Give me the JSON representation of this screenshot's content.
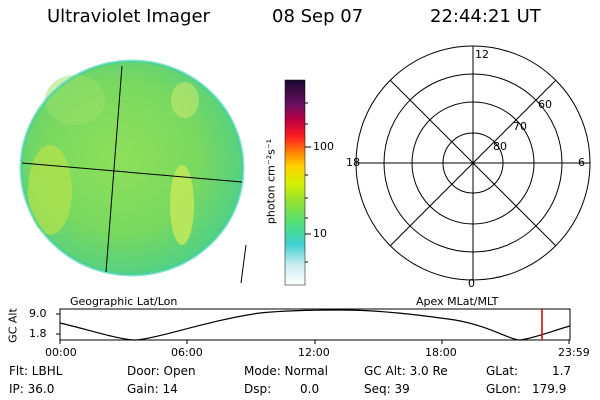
{
  "header": {
    "title": "Ultraviolet Imager",
    "date": "08 Sep 07",
    "time": "22:44:21 UT"
  },
  "colorbar": {
    "unit_label": "photon cm⁻²s⁻¹",
    "ticks": [
      "100",
      "10"
    ]
  },
  "polar": {
    "mlt_labels": {
      "top": "12",
      "left": "18",
      "right": "6",
      "bottom": "0"
    },
    "lat_labels": [
      "60",
      "70",
      "80"
    ]
  },
  "timeline": {
    "left_title": "Geographic Lat/Lon",
    "right_title": "Apex MLat/MLT",
    "axis_label": "GC Alt",
    "y_ticks": [
      "9.0",
      "1.8"
    ],
    "x_ticks": [
      "00:00",
      "06:00",
      "12:00",
      "18:00",
      "23:59"
    ],
    "marker_color": "#cc0000"
  },
  "info": {
    "flt": "Flt: LBHL",
    "ip": "IP: 36.0",
    "door": "Door: Open",
    "gain": "Gain: 14",
    "mode": "Mode: Normal",
    "dsp": "Dsp:",
    "dsp_value": "0.0",
    "gcalt": "GC Alt: 3.0 Re",
    "seq": "Seq: 39",
    "glat_label": "GLat:",
    "glat_value": "1.7",
    "glon_label": "GLon:",
    "glon_value": "179.9"
  }
}
